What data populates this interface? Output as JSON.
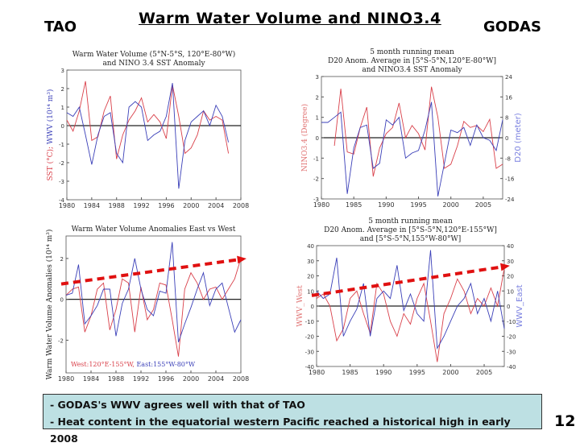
{
  "header": {
    "title": "Warm Water Volume and NINO3.4",
    "left_label": "TAO",
    "right_label": "GODAS"
  },
  "notes": [
    "- GODAS's WWV agrees well with that of TAO",
    "- Heat content in the equatorial western Pacific reached a historical high in early 2008"
  ],
  "page_number": "12",
  "colors": {
    "red_series": "#d9404a",
    "blue_series": "#3a3fb8",
    "trend_arrow": "#e01010",
    "note_bg": "#bde0e3"
  },
  "chart_data": [
    {
      "id": "tao-top",
      "type": "line",
      "title": [
        "Warm Water Volume (5°N-5°S, 120°E-80°W)",
        "and NINO 3.4 SST Anomaly"
      ],
      "ylabel_parts": [
        {
          "text": "SST (°C); ",
          "color": "red"
        },
        {
          "text": "WWV (10¹⁴ m³)",
          "color": "blue"
        }
      ],
      "xlim": [
        1980,
        2008
      ],
      "ylim": [
        -4,
        3
      ],
      "xticks": [
        1980,
        1984,
        1988,
        1992,
        1996,
        2000,
        2004,
        2008
      ],
      "yticks": [
        -4,
        -3,
        -2,
        -1,
        0,
        1,
        2,
        3
      ],
      "x": [
        1980,
        1981,
        1982,
        1983,
        1984,
        1985,
        1986,
        1987,
        1988,
        1989,
        1990,
        1991,
        1992,
        1993,
        1994,
        1995,
        1996,
        1997,
        1998,
        1999,
        2000,
        2001,
        2002,
        2003,
        2004,
        2005,
        2006
      ],
      "series": [
        {
          "color": "red",
          "values": [
            0.3,
            -0.3,
            0.8,
            2.4,
            -0.8,
            -0.6,
            0.8,
            1.6,
            -1.8,
            -0.5,
            0.3,
            0.8,
            1.5,
            0.2,
            0.6,
            0.2,
            -0.7,
            2.2,
            0.5,
            -1.5,
            -1.2,
            -0.5,
            0.8,
            0.3,
            0.5,
            0.3,
            -1.5
          ]
        },
        {
          "color": "blue",
          "values": [
            0.7,
            0.5,
            1.0,
            -0.5,
            -2.1,
            -0.5,
            0.5,
            0.7,
            -1.5,
            -2.0,
            1.0,
            1.3,
            1.0,
            -0.8,
            -0.5,
            -0.3,
            0.5,
            2.3,
            -3.4,
            -0.8,
            0.2,
            0.5,
            0.8,
            0.0,
            1.1,
            0.5,
            -0.9
          ]
        }
      ]
    },
    {
      "id": "godas-top",
      "type": "line",
      "title": [
        "5 month running mean",
        "D20 Anom. Average in [5°S-5°N,120°E-80°W]",
        "and NINO3.4 SST Anomaly"
      ],
      "ylabel": "NINO3.4 (Degree)",
      "ylabel_right": "D20 (meter)",
      "xlim": [
        1980,
        2008
      ],
      "ylim": [
        -3,
        3
      ],
      "ylim_right": [
        -24,
        24
      ],
      "xticks": [
        1980,
        1985,
        1990,
        1995,
        2000,
        2005
      ],
      "yticks": [
        -3,
        -2,
        -1,
        0,
        1,
        2,
        3
      ],
      "yticks_right": [
        -24,
        -16,
        -8,
        0,
        8,
        16,
        24
      ],
      "x": [
        1980,
        1981,
        1982,
        1983,
        1984,
        1985,
        1986,
        1987,
        1988,
        1989,
        1990,
        1991,
        1992,
        1993,
        1994,
        1995,
        1996,
        1997,
        1998,
        1999,
        2000,
        2001,
        2002,
        2003,
        2004,
        2005,
        2006,
        2007,
        2008
      ],
      "series": [
        {
          "color": "red",
          "axis": "left",
          "values": [
            null,
            null,
            -0.4,
            2.4,
            -0.7,
            -0.8,
            0.5,
            1.5,
            -1.9,
            -0.5,
            0.2,
            0.5,
            1.7,
            0.0,
            0.6,
            0.2,
            -0.6,
            2.5,
            1.0,
            -1.5,
            -1.3,
            -0.4,
            0.8,
            0.5,
            0.6,
            0.3,
            0.9,
            -1.5,
            -1.3
          ]
        },
        {
          "color": "blue",
          "axis": "right",
          "values": [
            6,
            6,
            8,
            10,
            -22,
            -4,
            4,
            5,
            -12,
            -10,
            7,
            5,
            8,
            -8,
            -6,
            -5,
            3,
            14,
            -23,
            -10,
            3,
            2,
            4,
            -3,
            5,
            0,
            -1,
            -5,
            7
          ]
        }
      ]
    },
    {
      "id": "tao-bottom",
      "type": "line",
      "title": [
        "Warm Water Volume Anomalies East vs West"
      ],
      "ylabel": "Warm Water Volume Anomalies (10¹⁴ m³)",
      "legend": "West:120°E-155°W, East:155°W-80°W",
      "legend_position": "bottom-left",
      "xlim": [
        1980,
        2008
      ],
      "ylim": [
        -3.6,
        3.1
      ],
      "xticks": [
        1980,
        1984,
        1988,
        1992,
        1996,
        2000,
        2004,
        2008
      ],
      "yticks": [
        -2,
        0,
        2
      ],
      "x": [
        1980,
        1981,
        1982,
        1983,
        1984,
        1985,
        1986,
        1987,
        1988,
        1989,
        1990,
        1991,
        1992,
        1993,
        1994,
        1995,
        1996,
        1997,
        1998,
        1999,
        2000,
        2001,
        2002,
        2003,
        2004,
        2005,
        2006,
        2007,
        2008
      ],
      "series": [
        {
          "name": "West:120°E-155°W",
          "color": "red",
          "values": [
            0.2,
            0.5,
            0.6,
            -1.6,
            -0.8,
            0.5,
            0.8,
            -1.5,
            -0.5,
            1.0,
            0.8,
            -1.6,
            0.6,
            -1.0,
            -0.5,
            0.8,
            0.7,
            -1.0,
            -2.8,
            0.5,
            1.3,
            0.8,
            0.0,
            0.5,
            0.6,
            0.0,
            0.5,
            1.0,
            2.0
          ]
        },
        {
          "name": "East:155°W-80°W",
          "color": "blue",
          "values": [
            0.2,
            0.3,
            1.7,
            -1.2,
            -0.8,
            -0.3,
            0.5,
            0.5,
            -1.8,
            -0.2,
            0.5,
            2.0,
            0.5,
            -0.5,
            -0.8,
            0.4,
            0.3,
            2.8,
            -2.1,
            -1.2,
            -0.4,
            0.5,
            1.3,
            -0.3,
            0.5,
            0.8,
            -0.4,
            -1.6,
            -1.0
          ]
        }
      ],
      "trend_arrow": {
        "from": [
          1980,
          0.75
        ],
        "to": [
          2008,
          1.95
        ]
      }
    },
    {
      "id": "godas-bottom",
      "type": "line",
      "title": [
        "5 month running mean",
        "D20 Anom. Average in [5°S-5°N,120°E-155°W]",
        "and [5°S-5°N,155°W-80°W]"
      ],
      "ylabel": "WWV_West",
      "ylabel_right": "WWV_East",
      "xlim": [
        1980,
        2008
      ],
      "ylim": [
        -40,
        40
      ],
      "xticks": [
        1980,
        1985,
        1990,
        1995,
        2000,
        2005
      ],
      "yticks": [
        -40,
        -30,
        -20,
        -10,
        0,
        10,
        20,
        30,
        40
      ],
      "yticks_right": [
        -40,
        -30,
        -20,
        -10,
        0,
        10,
        20,
        30,
        40
      ],
      "x": [
        1980,
        1981,
        1982,
        1983,
        1984,
        1985,
        1986,
        1987,
        1988,
        1989,
        1990,
        1991,
        1992,
        1993,
        1994,
        1995,
        1996,
        1997,
        1998,
        1999,
        2000,
        2001,
        2002,
        2003,
        2004,
        2005,
        2006,
        2007,
        2008
      ],
      "series": [
        {
          "name": "WWV_West",
          "color": "red",
          "values": [
            5,
            8,
            0,
            -23,
            -15,
            5,
            10,
            -5,
            -18,
            15,
            8,
            -10,
            -20,
            -5,
            -12,
            5,
            15,
            -10,
            -37,
            -5,
            5,
            18,
            10,
            -5,
            5,
            0,
            12,
            0,
            25
          ]
        },
        {
          "name": "WWV_East",
          "color": "blue",
          "values": [
            10,
            5,
            8,
            32,
            -20,
            -10,
            -2,
            15,
            -20,
            5,
            10,
            5,
            27,
            -3,
            8,
            -5,
            -10,
            37,
            -28,
            -20,
            -10,
            0,
            5,
            15,
            -5,
            5,
            -10,
            10,
            -15
          ]
        }
      ],
      "trend_arrow": {
        "from": [
          1980,
          7
        ],
        "to": [
          2008,
          26
        ]
      }
    }
  ]
}
